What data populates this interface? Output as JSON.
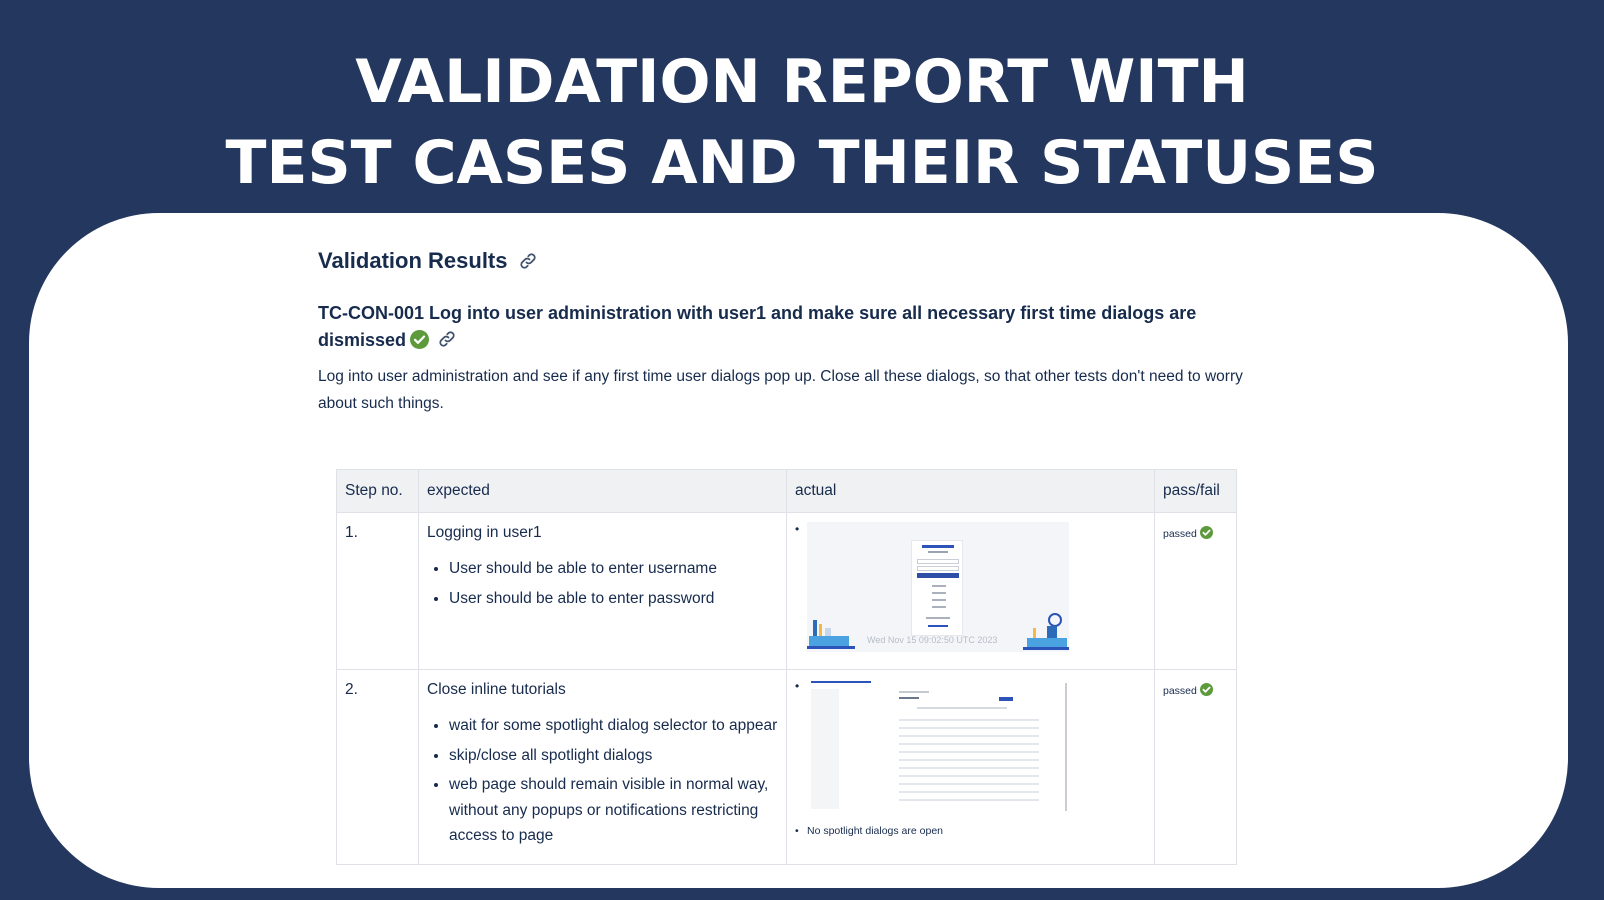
{
  "banner": {
    "line1": "VALIDATION REPORT WITH",
    "line2": "TEST CASES AND THEIR STATUSES"
  },
  "page": {
    "heading": "Validation Results",
    "test_case_title": "TC-CON-001 Log into user administration with user1 and make sure all necessary first time dialogs are dismissed",
    "description": "Log into user administration and see if any first time user dialogs pop up. Close all these dialogs, so that other tests don't need to worry about such things."
  },
  "table": {
    "headers": [
      "Step no.",
      "expected",
      "actual",
      "pass/fail"
    ],
    "rows": [
      {
        "step": "1.",
        "expected_title": "Logging in user1",
        "expected_items": [
          "User should be able to enter username",
          "User should be able to enter password"
        ],
        "actual_bullet": "•",
        "screenshot_timestamp": "Wed Nov 15 09:02:50 UTC 2023",
        "screenshot_logo": "ATLASSIAN",
        "status": "passed"
      },
      {
        "step": "2.",
        "expected_title": "Close inline tutorials",
        "expected_items": [
          "wait for some spotlight dialog selector to appear",
          "skip/close all spotlight dialogs",
          "web page should remain visible in normal way, without any popups or notifications restricting access to page"
        ],
        "actual_bullet": "•",
        "actual_caption": "No spotlight dialogs are open",
        "status": "passed"
      }
    ]
  },
  "colors": {
    "background": "#24375f",
    "check": "#5d9a3c",
    "text": "#172b4d"
  },
  "icons": {
    "link": "link-icon",
    "check": "check-circle-icon"
  }
}
